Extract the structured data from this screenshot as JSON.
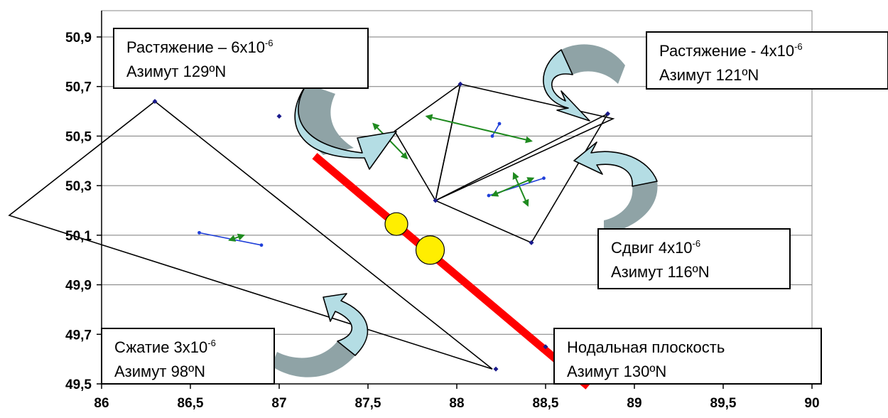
{
  "chart_data": {
    "type": "scatter",
    "xlim": [
      86,
      90
    ],
    "ylim": [
      49.5,
      50.9
    ],
    "x_ticks": [
      "86",
      "86,5",
      "87",
      "87,5",
      "88",
      "88,5",
      "89",
      "89,5",
      "90"
    ],
    "y_ticks": [
      "49,5",
      "49,7",
      "49,9",
      "50,1",
      "50,3",
      "50,5",
      "50,7",
      "50,9"
    ],
    "grid": "horizontal",
    "stations": [
      {
        "x": 86.3,
        "y": 50.64
      },
      {
        "x": 87.0,
        "y": 50.58
      },
      {
        "x": 88.02,
        "y": 50.71
      },
      {
        "x": 88.85,
        "y": 50.59
      },
      {
        "x": 87.88,
        "y": 50.24
      },
      {
        "x": 88.42,
        "y": 50.07
      },
      {
        "x": 88.22,
        "y": 49.56
      },
      {
        "x": 88.5,
        "y": 49.65
      }
    ],
    "triangles": [
      [
        [
          86.3,
          50.64
        ],
        [
          85.48,
          50.18
        ],
        [
          88.2,
          49.56
        ]
      ],
      [
        [
          87.88,
          50.24
        ],
        [
          88.02,
          50.71
        ],
        [
          87.65,
          50.52
        ]
      ],
      [
        [
          88.02,
          50.71
        ],
        [
          88.88,
          50.57
        ],
        [
          87.88,
          50.24
        ]
      ],
      [
        [
          87.88,
          50.24
        ],
        [
          88.85,
          50.59
        ],
        [
          88.42,
          50.07
        ]
      ]
    ],
    "nodal_plane": {
      "from": [
        87.2,
        50.42
      ],
      "to": [
        88.74,
        49.49
      ],
      "color": "#ff0000"
    },
    "epicenters": [
      {
        "x": 87.66,
        "y": 50.145,
        "size": "small"
      },
      {
        "x": 87.85,
        "y": 50.04,
        "size": "large"
      }
    ],
    "blue_axes": [
      {
        "from": [
          86.55,
          50.11
        ],
        "to": [
          86.9,
          50.06
        ]
      },
      {
        "from": [
          88.2,
          50.5
        ],
        "to": [
          88.24,
          50.55
        ]
      },
      {
        "from": [
          88.18,
          50.26
        ],
        "to": [
          88.49,
          50.33
        ]
      }
    ],
    "green_axes": [
      {
        "from": [
          87.53,
          50.55
        ],
        "to": [
          87.72,
          50.41
        ]
      },
      {
        "from": [
          87.83,
          50.58
        ],
        "to": [
          88.42,
          50.48
        ]
      },
      {
        "from": [
          88.2,
          50.26
        ],
        "to": [
          88.43,
          50.33
        ]
      },
      {
        "from": [
          88.32,
          50.35
        ],
        "to": [
          88.4,
          50.22
        ]
      },
      {
        "from": [
          86.72,
          50.08
        ],
        "to": [
          86.8,
          50.1
        ]
      }
    ],
    "annotations": [
      {
        "line1": "Растяжение – 6х10",
        "sup": "-6",
        "line2": "Азимут 129ºN"
      },
      {
        "line1": "Растяжение - 4х10",
        "sup": "-6",
        "line2": "Азимут 121ºN"
      },
      {
        "line1": "Сдвиг  4х10",
        "sup": "-6",
        "line2": "Азимут 116ºN"
      },
      {
        "line1": "Сжатие 3х10",
        "sup": "-6",
        "line2": "Азимут 98ºN"
      },
      {
        "line1": "Нодальная плоскость",
        "sup": "",
        "line2": "Азимут 130ºN"
      }
    ],
    "colors": {
      "nodal_plane": "#ff0000",
      "epicenter": "#ffee00",
      "station": "#1a1a8c",
      "extension_axis": "#1f8a1f",
      "compression_axis": "#1f3fd9",
      "callout_arrow": "#b4dde4",
      "callout_arrow_shade": "#8fa3a6"
    }
  }
}
